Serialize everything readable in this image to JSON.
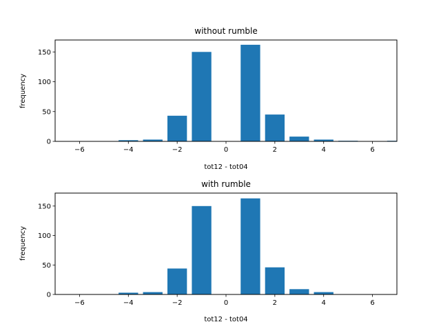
{
  "chart_data": [
    {
      "type": "bar",
      "title": "without rumble",
      "xlabel": "tot12 - tot04",
      "ylabel": "frequency",
      "xlim": [
        -7,
        7
      ],
      "ylim": [
        0,
        170
      ],
      "xticks": [
        "−6",
        "−4",
        "−2",
        "0",
        "2",
        "4",
        "6"
      ],
      "yticks": [
        "0",
        "50",
        "100",
        "150"
      ],
      "grid": false,
      "color": "#1f77b4",
      "series": [
        {
          "x": [
            -6,
            -5,
            -4,
            -3,
            -2,
            -1,
            0,
            1,
            2,
            3,
            4,
            5,
            6,
            7
          ],
          "values": [
            0,
            0,
            2,
            3,
            43,
            150,
            0,
            162,
            45,
            8,
            3,
            1,
            0,
            1
          ]
        }
      ]
    },
    {
      "type": "bar",
      "title": "with rumble",
      "xlabel": "tot12 - tot04",
      "ylabel": "frequency",
      "xlim": [
        -7,
        7
      ],
      "ylim": [
        0,
        172
      ],
      "xticks": [
        "−6",
        "−4",
        "−2",
        "0",
        "2",
        "4",
        "6"
      ],
      "yticks": [
        "0",
        "50",
        "100",
        "150"
      ],
      "grid": false,
      "color": "#1f77b4",
      "series": [
        {
          "x": [
            -6,
            -5,
            -4,
            -3,
            -2,
            -1,
            0,
            1,
            2,
            3,
            4,
            5,
            6,
            7
          ],
          "values": [
            0,
            0,
            3,
            4,
            44,
            150,
            0,
            163,
            46,
            9,
            4,
            0,
            0,
            0
          ]
        }
      ]
    }
  ]
}
